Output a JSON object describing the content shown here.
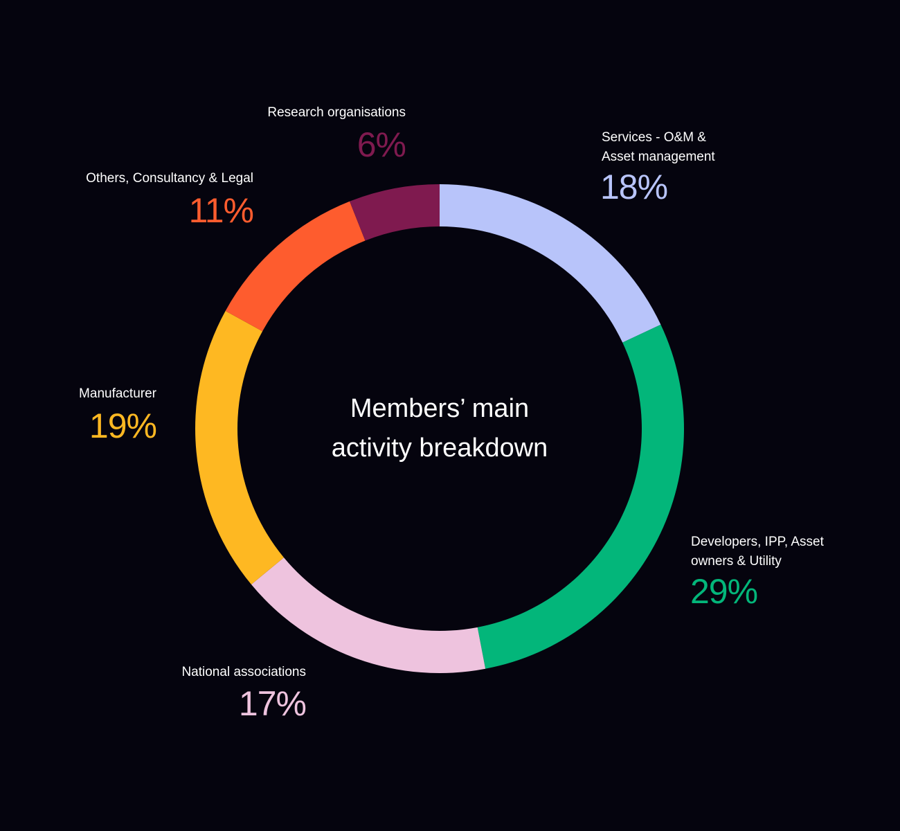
{
  "chart_data": {
    "type": "pie",
    "title_lines": [
      "Members’ main",
      "activity breakdown"
    ],
    "slices": [
      {
        "label_lines": [
          "Services - O&M &",
          "Asset management"
        ],
        "value": 18,
        "value_text": "18%",
        "color": "#b8c4fa"
      },
      {
        "label_lines": [
          "Developers, IPP, Asset",
          "owners & Utility"
        ],
        "value": 29,
        "value_text": "29%",
        "color": "#03b67a"
      },
      {
        "label_lines": [
          "National associations"
        ],
        "value": 17,
        "value_text": "17%",
        "color": "#eec3de"
      },
      {
        "label_lines": [
          "Manufacturer"
        ],
        "value": 19,
        "value_text": "19%",
        "color": "#feb822"
      },
      {
        "label_lines": [
          "Others, Consultancy & Legal"
        ],
        "value": 11,
        "value_text": "11%",
        "color": "#fe5c2e"
      },
      {
        "label_lines": [
          "Research organisations"
        ],
        "value": 6,
        "value_text": "6%",
        "color": "#7f1a4f"
      }
    ],
    "style": "donut",
    "background": "#05040e"
  }
}
